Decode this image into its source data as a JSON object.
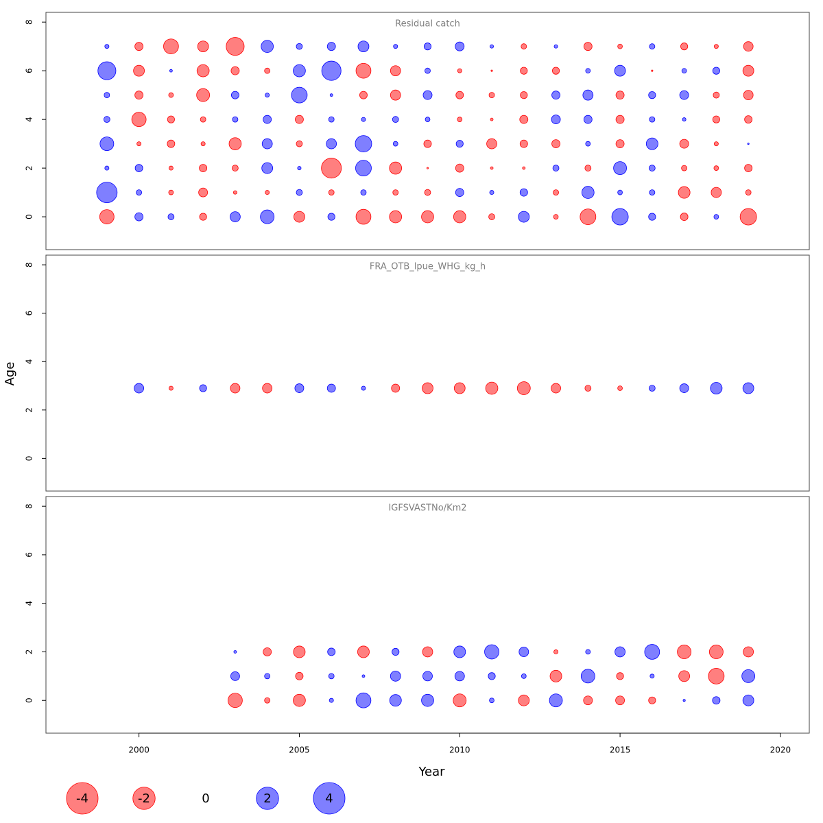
{
  "ylabel": "Age",
  "negative_color": "#ff0000",
  "positive_color": "#0000ff",
  "legend": [
    -4,
    -2,
    0,
    2,
    4
  ],
  "chart_data": [
    {
      "type": "bubble",
      "title": "Residual catch",
      "xlim": [
        1997.1,
        2020.9
      ],
      "ylim": [
        -1.35,
        8.4
      ],
      "yticks": [
        0,
        2,
        4,
        6,
        8
      ],
      "x": [
        1999,
        2000,
        2001,
        2002,
        2003,
        2004,
        2005,
        2006,
        2007,
        2008,
        2009,
        2010,
        2011,
        2012,
        2013,
        2014,
        2015,
        2016,
        2017,
        2018,
        2019
      ],
      "series": [
        {
          "y": 7,
          "values": [
            0.07,
            -0.27,
            -0.9,
            -0.48,
            -1.3,
            0.6,
            0.15,
            0.27,
            0.48,
            0.07,
            0.2,
            0.32,
            0.05,
            -0.12,
            0.05,
            -0.27,
            -0.09,
            0.12,
            -0.2,
            -0.07,
            -0.37
          ]
        },
        {
          "y": 6,
          "values": [
            1.3,
            -0.48,
            0.03,
            -0.6,
            -0.27,
            -0.12,
            0.6,
            1.5,
            -0.9,
            -0.42,
            0.12,
            -0.07,
            -0.01,
            -0.2,
            -0.2,
            0.09,
            0.48,
            -0.01,
            0.09,
            0.2,
            -0.48
          ]
        },
        {
          "y": 5,
          "values": [
            0.12,
            -0.27,
            -0.09,
            -0.68,
            0.23,
            0.07,
            1.0,
            0.03,
            -0.23,
            -0.42,
            0.32,
            -0.23,
            -0.12,
            -0.2,
            0.27,
            0.42,
            -0.27,
            0.2,
            0.32,
            -0.15,
            -0.37
          ]
        },
        {
          "y": 4,
          "values": [
            0.15,
            -0.83,
            -0.2,
            -0.12,
            0.12,
            0.27,
            -0.27,
            0.12,
            0.07,
            0.15,
            0.09,
            -0.09,
            -0.03,
            -0.27,
            0.32,
            0.27,
            -0.27,
            0.12,
            0.05,
            -0.2,
            -0.23
          ]
        },
        {
          "y": 3,
          "values": [
            0.76,
            -0.07,
            -0.23,
            -0.07,
            -0.6,
            0.42,
            -0.15,
            0.42,
            1.09,
            0.09,
            -0.23,
            0.2,
            -0.42,
            -0.23,
            -0.27,
            0.09,
            -0.27,
            0.55,
            -0.32,
            -0.07,
            0.01
          ]
        },
        {
          "y": 2,
          "values": [
            0.07,
            0.23,
            -0.07,
            -0.23,
            -0.15,
            0.48,
            0.05,
            -1.6,
            1.0,
            -0.6,
            -0.01,
            -0.27,
            -0.03,
            -0.03,
            0.15,
            -0.15,
            0.68,
            0.15,
            -0.12,
            -0.09,
            -0.23
          ]
        },
        {
          "y": 1,
          "values": [
            1.7,
            0.12,
            -0.09,
            -0.32,
            -0.05,
            -0.07,
            0.15,
            -0.12,
            0.12,
            -0.12,
            -0.15,
            0.27,
            0.07,
            0.23,
            -0.12,
            0.6,
            0.09,
            0.12,
            -0.55,
            -0.42,
            -0.12
          ]
        },
        {
          "y": 0,
          "values": [
            -0.83,
            0.27,
            0.15,
            -0.2,
            0.42,
            0.76,
            -0.48,
            0.2,
            -0.9,
            -0.6,
            -0.6,
            -0.6,
            -0.15,
            0.48,
            -0.09,
            -1.0,
            1.09,
            0.2,
            -0.23,
            0.09,
            -1.09
          ]
        }
      ]
    },
    {
      "type": "bubble",
      "title": "FRA_OTB_lpue_WHG_kg_h",
      "xlim": [
        1997.1,
        2020.9
      ],
      "ylim": [
        -1.35,
        8.4
      ],
      "yticks": [
        0,
        2,
        4,
        6,
        8
      ],
      "x": [
        2000,
        2001,
        2002,
        2003,
        2004,
        2005,
        2006,
        2007,
        2008,
        2009,
        2010,
        2011,
        2012,
        2013,
        2014,
        2015,
        2016,
        2017,
        2018,
        2019
      ],
      "series": [
        {
          "y": 2.9,
          "values": [
            0.37,
            -0.07,
            0.2,
            -0.37,
            -0.37,
            0.32,
            0.27,
            0.07,
            -0.27,
            -0.48,
            -0.48,
            -0.6,
            -0.68,
            -0.37,
            -0.15,
            -0.09,
            0.15,
            0.32,
            0.55,
            0.48
          ]
        }
      ]
    },
    {
      "type": "bubble",
      "title": "IGFSVASTNo/Km2",
      "xlabel": "Year",
      "xlim": [
        1997.1,
        2020.9
      ],
      "ylim": [
        -1.35,
        8.4
      ],
      "yticks": [
        0,
        2,
        4,
        6,
        8
      ],
      "xticks": [
        2000,
        2005,
        2010,
        2015,
        2020
      ],
      "x": [
        2003,
        2004,
        2005,
        2006,
        2007,
        2008,
        2009,
        2010,
        2011,
        2012,
        2013,
        2014,
        2015,
        2016,
        2017,
        2018,
        2019
      ],
      "series": [
        {
          "y": 2,
          "values": [
            0.03,
            -0.27,
            -0.55,
            0.23,
            -0.55,
            0.2,
            -0.42,
            0.55,
            0.83,
            0.37,
            -0.07,
            0.09,
            0.42,
            0.9,
            -0.76,
            -0.76,
            -0.42
          ]
        },
        {
          "y": 1,
          "values": [
            0.32,
            0.12,
            -0.23,
            0.12,
            0.03,
            0.42,
            0.37,
            0.37,
            0.2,
            0.09,
            -0.55,
            0.76,
            -0.2,
            0.07,
            -0.48,
            -1.0,
            0.68
          ]
        },
        {
          "y": 0,
          "values": [
            -0.83,
            -0.12,
            -0.6,
            0.07,
            0.9,
            0.55,
            0.6,
            -0.68,
            0.09,
            -0.48,
            0.68,
            -0.32,
            -0.32,
            -0.2,
            0.02,
            0.23,
            0.48
          ]
        }
      ]
    }
  ]
}
